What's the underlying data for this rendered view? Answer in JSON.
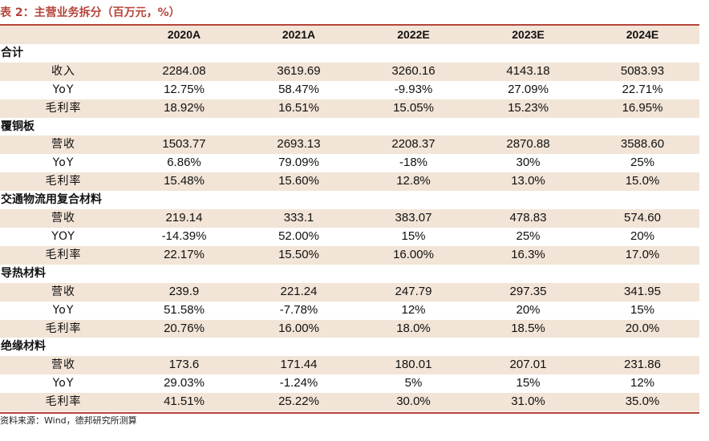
{
  "title": "表 2：主营业务拆分（百万元，%）",
  "columns": [
    "",
    "2020A",
    "2021A",
    "2022E",
    "2023E",
    "2024E"
  ],
  "sections": [
    {
      "name": "合计",
      "rows": [
        {
          "label": "收入",
          "values": [
            "2284.08",
            "3619.69",
            "3260.16",
            "4143.18",
            "5083.93"
          ]
        },
        {
          "label": "YoY",
          "values": [
            "12.75%",
            "58.47%",
            "-9.93%",
            "27.09%",
            "22.71%"
          ]
        },
        {
          "label": "毛利率",
          "values": [
            "18.92%",
            "16.51%",
            "15.05%",
            "15.23%",
            "16.95%"
          ]
        }
      ]
    },
    {
      "name": "覆铜板",
      "rows": [
        {
          "label": "营收",
          "values": [
            "1503.77",
            "2693.13",
            "2208.37",
            "2870.88",
            "3588.60"
          ]
        },
        {
          "label": "YoY",
          "values": [
            "6.86%",
            "79.09%",
            "-18%",
            "30%",
            "25%"
          ]
        },
        {
          "label": "毛利率",
          "values": [
            "15.48%",
            "15.60%",
            "12.8%",
            "13.0%",
            "15.0%"
          ]
        }
      ]
    },
    {
      "name": "交通物流用复合材料",
      "rows": [
        {
          "label": "营收",
          "values": [
            "219.14",
            "333.1",
            "383.07",
            "478.83",
            "574.60"
          ]
        },
        {
          "label": "YOY",
          "values": [
            "-14.39%",
            "52.00%",
            "15%",
            "25%",
            "20%"
          ]
        },
        {
          "label": "毛利率",
          "values": [
            "22.17%",
            "15.50%",
            "16.00%",
            "16.3%",
            "17.0%"
          ]
        }
      ]
    },
    {
      "name": "导热材料",
      "rows": [
        {
          "label": "营收",
          "values": [
            "239.9",
            "221.24",
            "247.79",
            "297.35",
            "341.95"
          ]
        },
        {
          "label": "YoY",
          "values": [
            "51.58%",
            "-7.78%",
            "12%",
            "20%",
            "15%"
          ]
        },
        {
          "label": "毛利率",
          "values": [
            "20.76%",
            "16.00%",
            "18.0%",
            "18.5%",
            "20.0%"
          ]
        }
      ]
    },
    {
      "name": "绝缘材料",
      "rows": [
        {
          "label": "营收",
          "values": [
            "173.6",
            "171.44",
            "180.01",
            "207.01",
            "231.86"
          ]
        },
        {
          "label": "YoY",
          "values": [
            "29.03%",
            "-1.24%",
            "5%",
            "15%",
            "12%"
          ]
        },
        {
          "label": "毛利率",
          "values": [
            "41.51%",
            "25.22%",
            "30.0%",
            "31.0%",
            "35.0%"
          ]
        }
      ]
    }
  ],
  "source": "资料来源：Wind，德邦研究所测算"
}
